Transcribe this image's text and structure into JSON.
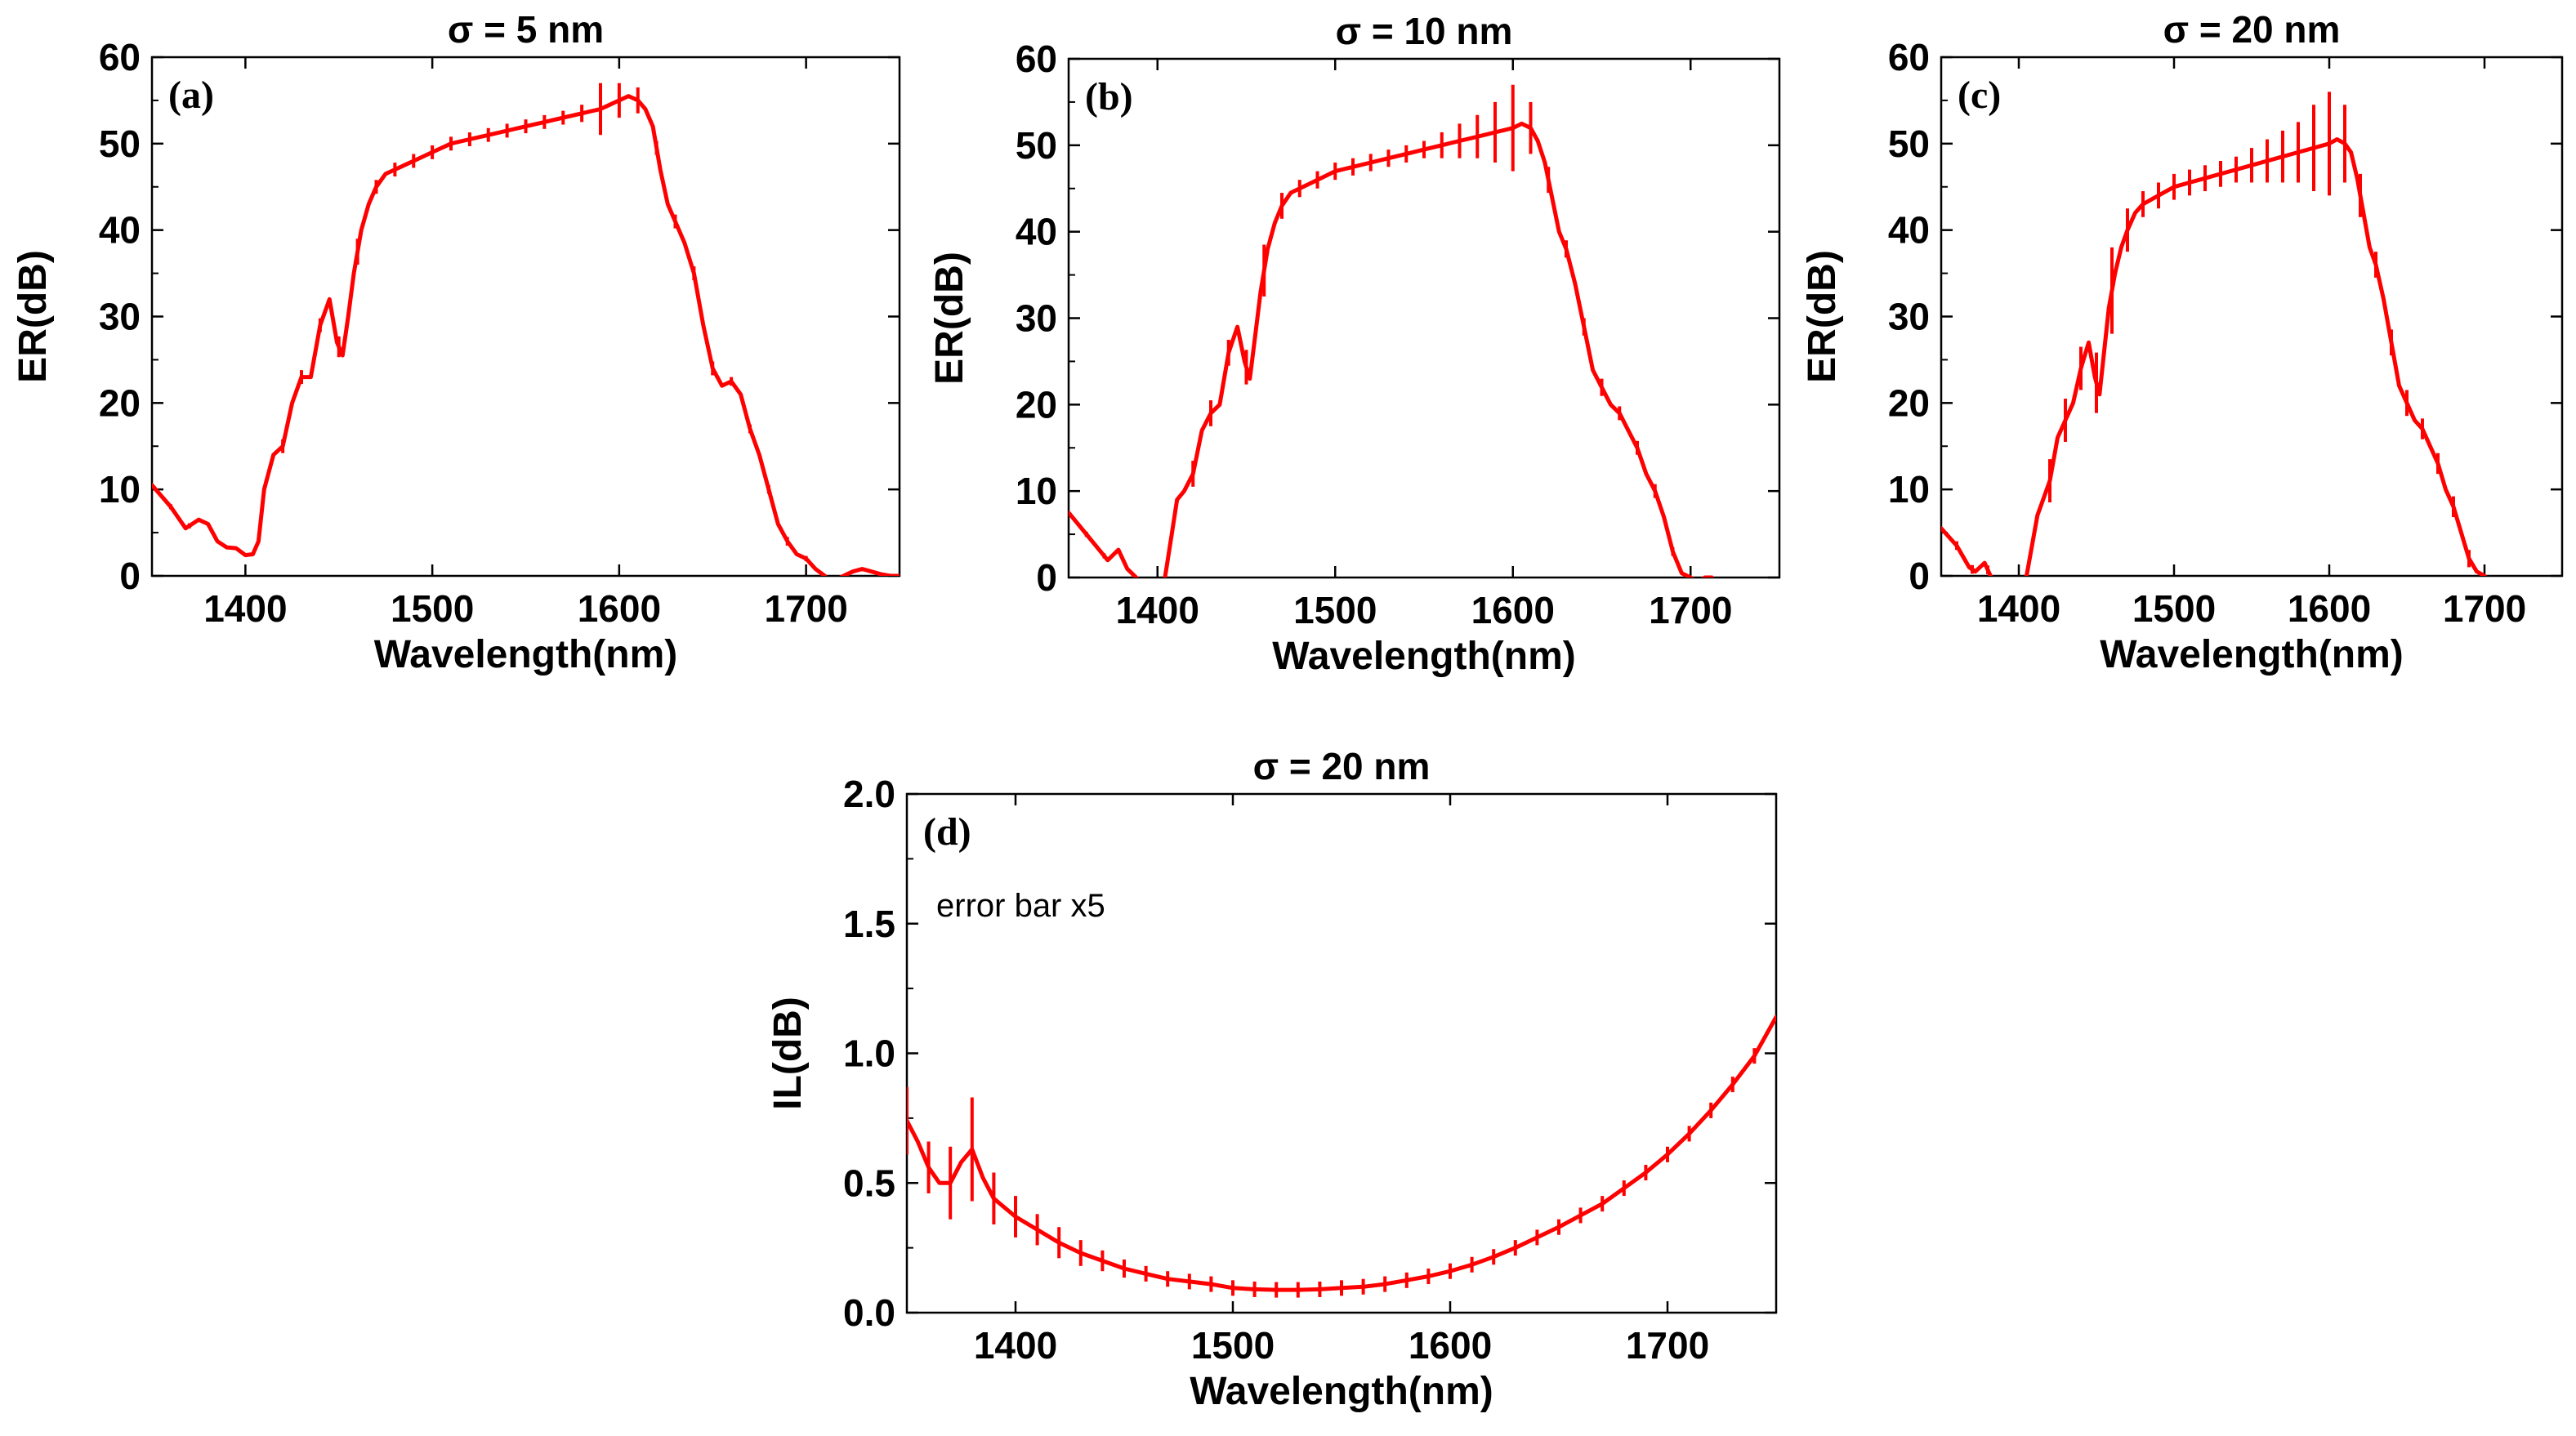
{
  "figure": {
    "background": "#ffffff",
    "line_color": "#ff0000"
  },
  "chart_data": [
    {
      "id": "a",
      "type": "line",
      "title": "σ = 5 nm",
      "panel_label": "(a)",
      "xlabel": "Wavelength(nm)",
      "ylabel": "ER(dB)",
      "xlim": [
        1350,
        1750
      ],
      "ylim": [
        0,
        60
      ],
      "xticks": [
        "1400",
        "1500",
        "1600",
        "1700"
      ],
      "xtick_values": [
        1400,
        1500,
        1600,
        1700
      ],
      "yticks": [
        "0",
        "10",
        "20",
        "30",
        "40",
        "50",
        "60"
      ],
      "ytick_values": [
        0,
        10,
        20,
        30,
        40,
        50,
        60
      ],
      "note": "",
      "series": [
        {
          "name": "ER",
          "x": [
            1350,
            1360,
            1368,
            1375,
            1380,
            1385,
            1390,
            1395,
            1400,
            1404,
            1407,
            1410,
            1415,
            1420,
            1425,
            1430,
            1435,
            1440,
            1445,
            1449,
            1452,
            1455,
            1458,
            1462,
            1466,
            1470,
            1475,
            1480,
            1485,
            1490,
            1500,
            1510,
            1520,
            1530,
            1540,
            1550,
            1560,
            1570,
            1580,
            1590,
            1595,
            1600,
            1605,
            1610,
            1614,
            1618,
            1622,
            1626,
            1630,
            1635,
            1640,
            1645,
            1650,
            1655,
            1660,
            1665,
            1670,
            1675,
            1680,
            1685,
            1690,
            1695,
            1700,
            1705,
            1710,
            1713,
            1716,
            1720,
            1725,
            1730,
            1735,
            1740,
            1745,
            1750
          ],
          "y": [
            10.5,
            8,
            5.5,
            6.5,
            6,
            4,
            3.3,
            3.2,
            2.4,
            2.5,
            4,
            10,
            14,
            15,
            20,
            23,
            23,
            29,
            32,
            27,
            25.5,
            30,
            35,
            40,
            43,
            45,
            46.5,
            47,
            47.5,
            48,
            49,
            50,
            50.5,
            51,
            51.5,
            52,
            52.5,
            53,
            53.5,
            54,
            54.5,
            55,
            55.5,
            55,
            54,
            52,
            47,
            43,
            41,
            38.5,
            35,
            29,
            24,
            22,
            22.5,
            21,
            17,
            14,
            10,
            6,
            4,
            2.5,
            2,
            0.8,
            0,
            -1,
            -0.5,
            0,
            0.5,
            0.8,
            0.5,
            0.2,
            0,
            0
          ],
          "error_bar_x": [
            1360,
            1370,
            1420,
            1430,
            1440,
            1450,
            1460,
            1470,
            1480,
            1490,
            1500,
            1510,
            1520,
            1530,
            1540,
            1550,
            1560,
            1570,
            1580,
            1590,
            1600,
            1610,
            1620,
            1630,
            1640,
            1650,
            1660,
            1670,
            1680,
            1690,
            1700
          ],
          "error_bar_half": [
            0.3,
            0.3,
            0.8,
            0.8,
            0.8,
            1.2,
            1.5,
            0.8,
            0.8,
            0.8,
            0.8,
            0.8,
            0.8,
            0.8,
            0.8,
            0.8,
            0.8,
            0.8,
            1.0,
            3.0,
            2.0,
            1.5,
            0.8,
            0.8,
            0.8,
            0.8,
            0.5,
            0.5,
            0.5,
            0.5,
            0.3
          ]
        }
      ]
    },
    {
      "id": "b",
      "type": "line",
      "title": "σ = 10 nm",
      "panel_label": "(b)",
      "xlabel": "Wavelength(nm)",
      "ylabel": "ER(dB)",
      "xlim": [
        1350,
        1750
      ],
      "ylim": [
        0,
        60
      ],
      "xticks": [
        "1400",
        "1500",
        "1600",
        "1700"
      ],
      "xtick_values": [
        1400,
        1500,
        1600,
        1700
      ],
      "yticks": [
        "0",
        "10",
        "20",
        "30",
        "40",
        "50",
        "60"
      ],
      "ytick_values": [
        0,
        10,
        20,
        30,
        40,
        50,
        60
      ],
      "note": "",
      "series": [
        {
          "name": "ER",
          "x": [
            1350,
            1360,
            1368,
            1372,
            1378,
            1383,
            1388,
            1393,
            1398,
            1403,
            1405,
            1408,
            1411,
            1415,
            1420,
            1425,
            1430,
            1435,
            1440,
            1445,
            1449,
            1452,
            1455,
            1458,
            1462,
            1466,
            1470,
            1475,
            1480,
            1490,
            1500,
            1510,
            1520,
            1530,
            1540,
            1550,
            1560,
            1570,
            1580,
            1590,
            1600,
            1605,
            1610,
            1614,
            1618,
            1622,
            1626,
            1630,
            1635,
            1640,
            1645,
            1650,
            1655,
            1660,
            1665,
            1670,
            1675,
            1680,
            1685,
            1690,
            1695,
            1700,
            1704,
            1708,
            1712
          ],
          "y": [
            7.5,
            5,
            3,
            2,
            3.2,
            1,
            0,
            -1,
            -2,
            -1.5,
            1,
            5,
            9,
            10,
            12,
            17,
            19,
            20,
            26,
            29,
            25,
            23,
            28,
            33,
            38,
            41,
            43,
            44.5,
            45,
            46,
            47,
            47.5,
            48,
            48.5,
            49,
            49.5,
            50,
            50.5,
            51,
            51.5,
            52,
            52.5,
            52,
            50.5,
            48,
            44,
            40,
            38,
            34,
            29,
            24,
            22,
            20,
            19,
            17,
            15,
            12,
            10,
            7,
            3,
            0.5,
            0,
            -0.5,
            0,
            0
          ],
          "error_bar_x": [
            1360,
            1370,
            1420,
            1430,
            1440,
            1450,
            1460,
            1470,
            1480,
            1490,
            1500,
            1510,
            1520,
            1530,
            1540,
            1550,
            1560,
            1570,
            1580,
            1590,
            1600,
            1610,
            1620,
            1630,
            1640,
            1650,
            1660,
            1670,
            1680,
            1690
          ],
          "error_bar_half": [
            0.3,
            0.3,
            1.5,
            1.5,
            1.5,
            2.0,
            3.0,
            1.5,
            1.0,
            1.0,
            1.0,
            1.0,
            1.0,
            1.0,
            1.0,
            1.0,
            1.5,
            2.0,
            2.5,
            3.5,
            5.0,
            3.0,
            1.5,
            1.0,
            1.0,
            1.0,
            0.8,
            0.8,
            0.8,
            0.5
          ]
        }
      ]
    },
    {
      "id": "c",
      "type": "line",
      "title": "σ = 20 nm",
      "panel_label": "(c)",
      "xlabel": "Wavelength(nm)",
      "ylabel": "ER(dB)",
      "xlim": [
        1350,
        1750
      ],
      "ylim": [
        0,
        60
      ],
      "xticks": [
        "1400",
        "1500",
        "1600",
        "1700"
      ],
      "xtick_values": [
        1400,
        1500,
        1600,
        1700
      ],
      "yticks": [
        "0",
        "10",
        "20",
        "30",
        "40",
        "50",
        "60"
      ],
      "ytick_values": [
        0,
        10,
        20,
        30,
        40,
        50,
        60
      ],
      "note": "",
      "series": [
        {
          "name": "ER",
          "x": [
            1350,
            1360,
            1368,
            1372,
            1378,
            1383,
            1388,
            1393,
            1398,
            1403,
            1405,
            1408,
            1412,
            1416,
            1420,
            1425,
            1430,
            1435,
            1440,
            1445,
            1449,
            1452,
            1455,
            1458,
            1462,
            1466,
            1470,
            1475,
            1480,
            1490,
            1500,
            1510,
            1520,
            1530,
            1540,
            1550,
            1560,
            1570,
            1580,
            1590,
            1600,
            1605,
            1610,
            1614,
            1618,
            1622,
            1626,
            1630,
            1635,
            1640,
            1645,
            1650,
            1655,
            1660,
            1665,
            1670,
            1675,
            1680,
            1685,
            1690,
            1695,
            1700
          ],
          "y": [
            5.5,
            3.5,
            1,
            0.5,
            1.5,
            -0.5,
            -2,
            -3,
            -2,
            -1,
            0,
            3,
            7,
            9,
            11,
            16,
            18,
            20,
            24,
            27,
            23,
            21,
            26,
            31,
            35,
            38,
            40,
            42,
            43,
            44,
            45,
            45.5,
            46,
            46.5,
            47,
            47.5,
            48,
            48.5,
            49,
            49.5,
            50,
            50.5,
            50,
            49,
            46,
            42,
            38,
            36,
            32,
            27,
            22,
            20,
            18,
            17,
            15,
            13,
            10,
            8,
            5,
            2,
            0.5,
            0
          ],
          "error_bar_x": [
            1360,
            1370,
            1380,
            1420,
            1430,
            1440,
            1450,
            1460,
            1470,
            1480,
            1490,
            1500,
            1510,
            1520,
            1530,
            1540,
            1550,
            1560,
            1570,
            1580,
            1590,
            1600,
            1610,
            1620,
            1630,
            1640,
            1650,
            1660,
            1670,
            1680,
            1690
          ],
          "error_bar_half": [
            0.5,
            0.5,
            0.5,
            2.5,
            2.5,
            2.5,
            3.5,
            5.0,
            2.5,
            1.5,
            1.5,
            1.5,
            1.5,
            1.5,
            1.5,
            1.5,
            2.0,
            2.5,
            3.0,
            3.5,
            5.0,
            6.0,
            4.5,
            2.5,
            1.5,
            1.5,
            1.5,
            1.2,
            1.2,
            1.2,
            1.0
          ]
        }
      ]
    },
    {
      "id": "d",
      "type": "line",
      "title": "σ = 20 nm",
      "panel_label": "(d)",
      "xlabel": "Wavelength(nm)",
      "ylabel": "IL(dB)",
      "xlim": [
        1350,
        1750
      ],
      "ylim": [
        0,
        2.0
      ],
      "xticks": [
        "1400",
        "1500",
        "1600",
        "1700"
      ],
      "xtick_values": [
        1400,
        1500,
        1600,
        1700
      ],
      "yticks": [
        "0.0",
        "0.5",
        "1.0",
        "1.5",
        "2.0"
      ],
      "ytick_values": [
        0,
        0.5,
        1.0,
        1.5,
        2.0
      ],
      "note": "error bar x5",
      "series": [
        {
          "name": "IL",
          "x": [
            1350,
            1355,
            1360,
            1365,
            1370,
            1375,
            1380,
            1385,
            1390,
            1400,
            1410,
            1420,
            1430,
            1440,
            1450,
            1460,
            1470,
            1480,
            1490,
            1500,
            1510,
            1520,
            1530,
            1540,
            1550,
            1560,
            1570,
            1580,
            1590,
            1600,
            1610,
            1620,
            1630,
            1640,
            1650,
            1660,
            1670,
            1680,
            1690,
            1700,
            1710,
            1720,
            1730,
            1740,
            1750
          ],
          "y": [
            0.74,
            0.66,
            0.56,
            0.5,
            0.5,
            0.58,
            0.63,
            0.52,
            0.44,
            0.37,
            0.32,
            0.27,
            0.23,
            0.2,
            0.17,
            0.15,
            0.13,
            0.12,
            0.11,
            0.095,
            0.09,
            0.088,
            0.088,
            0.09,
            0.095,
            0.1,
            0.11,
            0.125,
            0.14,
            0.16,
            0.185,
            0.215,
            0.25,
            0.29,
            0.33,
            0.375,
            0.42,
            0.48,
            0.54,
            0.61,
            0.69,
            0.78,
            0.88,
            0.99,
            1.14
          ],
          "error_bar_x": [
            1350,
            1360,
            1370,
            1380,
            1390,
            1400,
            1410,
            1420,
            1430,
            1440,
            1450,
            1460,
            1470,
            1480,
            1490,
            1500,
            1510,
            1520,
            1530,
            1540,
            1550,
            1560,
            1570,
            1580,
            1590,
            1600,
            1610,
            1620,
            1630,
            1640,
            1650,
            1660,
            1670,
            1680,
            1690,
            1700,
            1710,
            1720,
            1730,
            1740
          ],
          "error_bar_half": [
            0.13,
            0.1,
            0.14,
            0.2,
            0.1,
            0.08,
            0.06,
            0.06,
            0.05,
            0.04,
            0.035,
            0.03,
            0.03,
            0.03,
            0.03,
            0.03,
            0.03,
            0.03,
            0.03,
            0.03,
            0.03,
            0.03,
            0.03,
            0.03,
            0.03,
            0.03,
            0.03,
            0.03,
            0.03,
            0.03,
            0.03,
            0.03,
            0.03,
            0.03,
            0.03,
            0.03,
            0.03,
            0.03,
            0.03,
            0.03
          ]
        }
      ]
    }
  ]
}
